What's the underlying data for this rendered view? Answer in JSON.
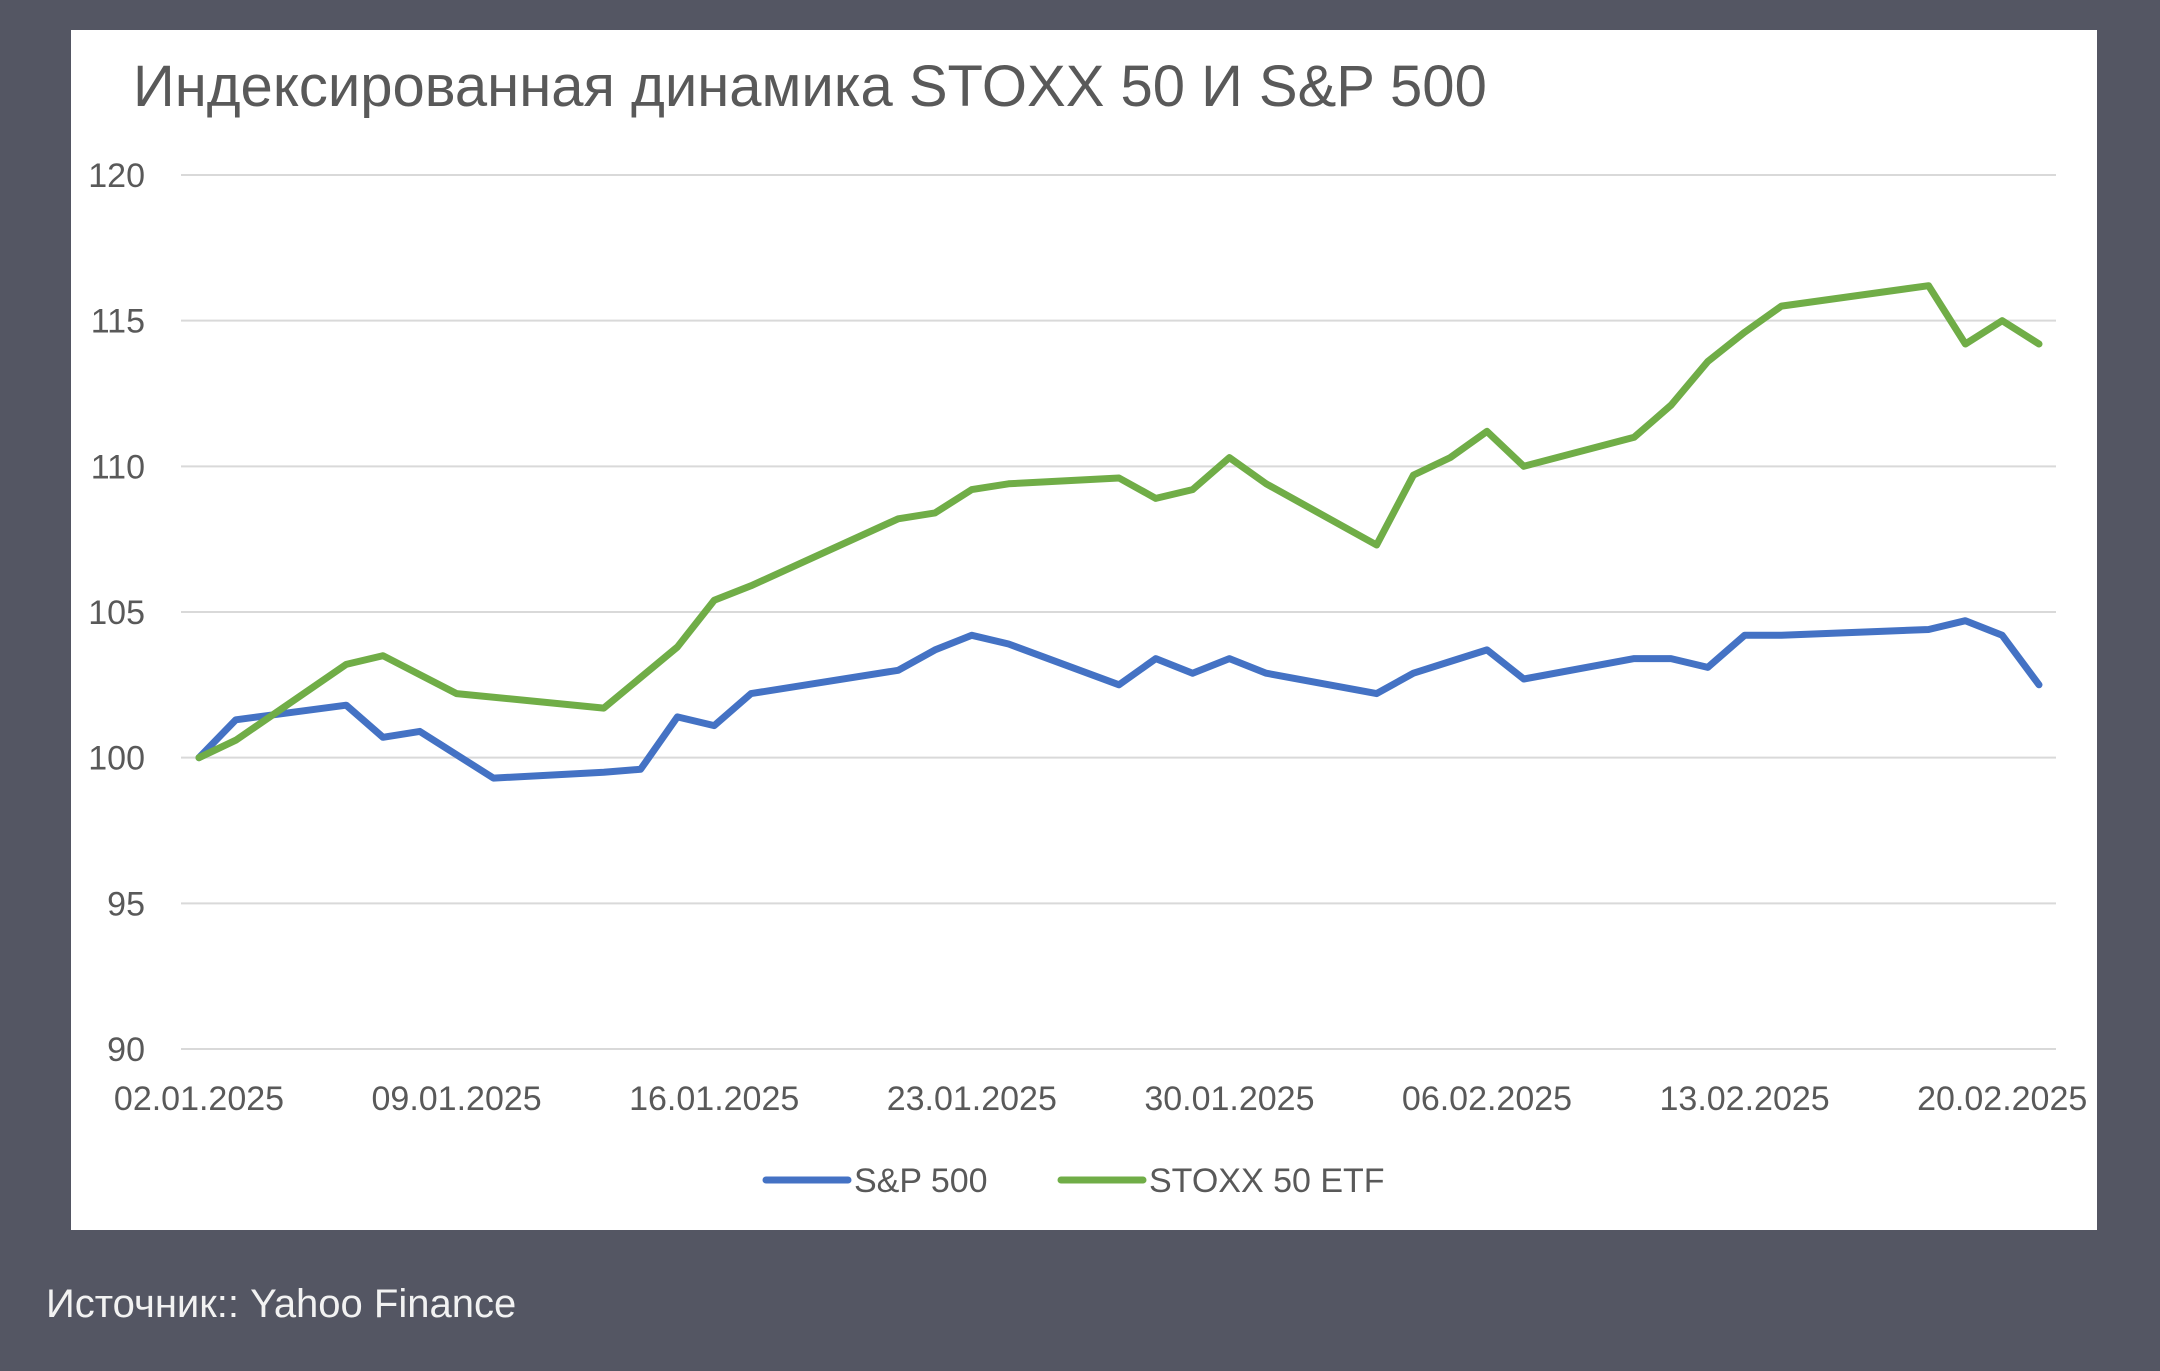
{
  "chart_data": {
    "type": "line",
    "title": "Индексированная динамика STOXX 50 И S&P 500",
    "xlabel": "",
    "ylabel": "",
    "ylim": [
      90,
      120
    ],
    "yticks": [
      "90",
      "95",
      "100",
      "105",
      "110",
      "115",
      "120"
    ],
    "xticks": [
      "02.01.2025",
      "09.01.2025",
      "16.01.2025",
      "23.01.2025",
      "30.01.2025",
      "06.02.2025",
      "13.02.2025",
      "20.02.2025"
    ],
    "x": [
      "02.01.2025",
      "03.01.2025",
      "06.01.2025",
      "07.01.2025",
      "08.01.2025",
      "10.01.2025",
      "13.01.2025",
      "14.01.2025",
      "15.01.2025",
      "16.01.2025",
      "17.01.2025",
      "21.01.2025",
      "22.01.2025",
      "23.01.2025",
      "24.01.2025",
      "27.01.2025",
      "28.01.2025",
      "29.01.2025",
      "30.01.2025",
      "31.01.2025",
      "03.02.2025",
      "04.02.2025",
      "05.02.2025",
      "06.02.2025",
      "07.02.2025",
      "10.02.2025",
      "11.02.2025",
      "12.02.2025",
      "13.02.2025",
      "14.02.2025",
      "18.02.2025",
      "19.02.2025",
      "20.02.2025",
      "21.02.2025"
    ],
    "series": [
      {
        "name": "S&P 500",
        "color": "#4472C4",
        "x": [
          "02.01.2025",
          "03.01.2025",
          "06.01.2025",
          "07.01.2025",
          "08.01.2025",
          "10.01.2025",
          "13.01.2025",
          "14.01.2025",
          "15.01.2025",
          "16.01.2025",
          "17.01.2025",
          "21.01.2025",
          "22.01.2025",
          "23.01.2025",
          "24.01.2025",
          "27.01.2025",
          "28.01.2025",
          "29.01.2025",
          "30.01.2025",
          "31.01.2025",
          "03.02.2025",
          "04.02.2025",
          "05.02.2025",
          "06.02.2025",
          "07.02.2025",
          "10.02.2025",
          "11.02.2025",
          "12.02.2025",
          "13.02.2025",
          "14.02.2025",
          "18.02.2025",
          "19.02.2025",
          "20.02.2025",
          "21.02.2025"
        ],
        "values": [
          100.0,
          101.3,
          101.8,
          100.7,
          100.9,
          99.3,
          99.5,
          99.6,
          101.4,
          101.1,
          102.2,
          103.0,
          103.7,
          104.2,
          103.9,
          102.5,
          103.4,
          102.9,
          103.4,
          102.9,
          102.2,
          102.9,
          103.3,
          103.7,
          102.7,
          103.4,
          103.4,
          103.1,
          104.2,
          104.2,
          104.4,
          104.7,
          104.2,
          102.5
        ]
      },
      {
        "name": "STOXX 50 ETF",
        "color": "#70AD47",
        "x": [
          "02.01.2025",
          "03.01.2025",
          "06.01.2025",
          "07.01.2025",
          "09.01.2025",
          "13.01.2025",
          "15.01.2025",
          "16.01.2025",
          "17.01.2025",
          "21.01.2025",
          "22.01.2025",
          "23.01.2025",
          "24.01.2025",
          "27.01.2025",
          "28.01.2025",
          "29.01.2025",
          "30.01.2025",
          "31.01.2025",
          "03.02.2025",
          "04.02.2025",
          "05.02.2025",
          "06.02.2025",
          "07.02.2025",
          "10.02.2025",
          "11.02.2025",
          "12.02.2025",
          "13.02.2025",
          "14.02.2025",
          "18.02.2025",
          "19.02.2025",
          "20.02.2025",
          "21.02.2025"
        ],
        "values": [
          100.0,
          100.6,
          103.2,
          103.5,
          102.2,
          101.7,
          103.8,
          105.4,
          105.9,
          108.2,
          108.4,
          109.2,
          109.4,
          109.6,
          108.9,
          109.2,
          110.3,
          109.4,
          107.3,
          109.7,
          110.3,
          111.2,
          110.0,
          111.0,
          112.1,
          113.6,
          114.6,
          115.5,
          116.2,
          114.2,
          115.0,
          114.2
        ]
      }
    ],
    "grid": true,
    "legend_position": "bottom-center"
  },
  "footer": {
    "source": "Источник:: Yahoo Finance"
  },
  "colors": {
    "page_background": "#545663",
    "card_background": "#ffffff",
    "gridline": "#d9d9d9",
    "axis_text": "#595959",
    "title_text": "#595959"
  }
}
